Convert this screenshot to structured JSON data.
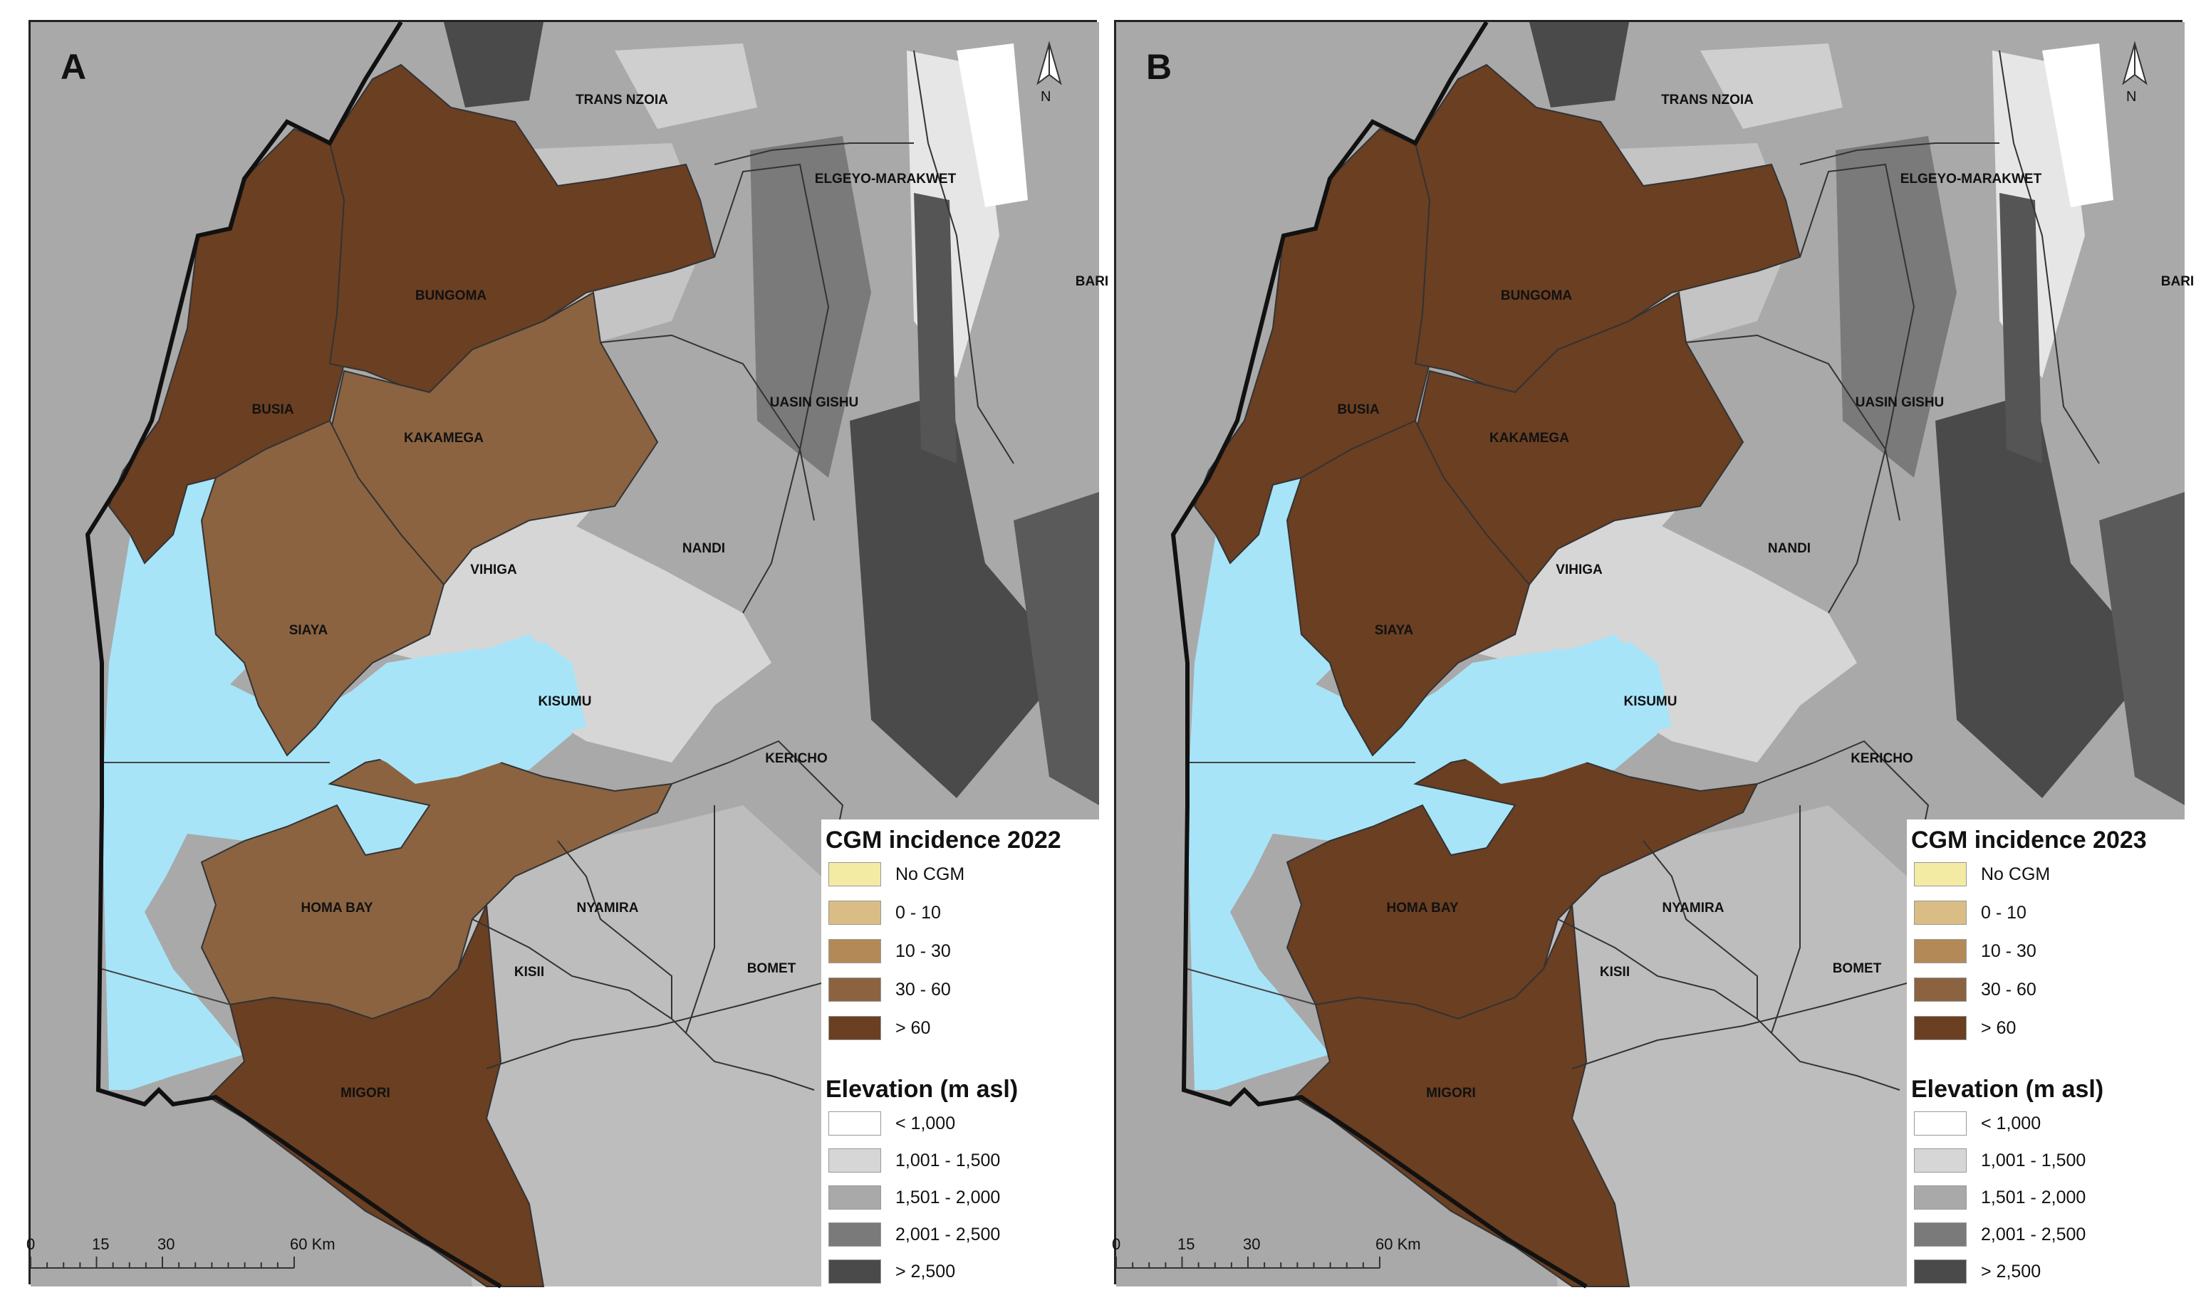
{
  "panels": [
    {
      "letter": "A",
      "legend_title": "CGM incidence 2022",
      "counties": {
        "busia": {
          "name": "BUSIA",
          "class": "> 60"
        },
        "bungoma": {
          "name": "BUNGOMA",
          "class": "> 60"
        },
        "kakamega": {
          "name": "KAKAMEGA",
          "class": "30 - 60"
        },
        "siaya": {
          "name": "SIAYA",
          "class": "30 - 60"
        },
        "homa_bay": {
          "name": "HOMA BAY",
          "class": "30 - 60"
        },
        "migori": {
          "name": "MIGORI",
          "class": "> 60"
        }
      }
    },
    {
      "letter": "B",
      "legend_title": "CGM incidence 2023",
      "counties": {
        "busia": {
          "name": "BUSIA",
          "class": "> 60"
        },
        "bungoma": {
          "name": "BUNGOMA",
          "class": "> 60"
        },
        "kakamega": {
          "name": "KAKAMEGA",
          "class": "> 60"
        },
        "siaya": {
          "name": "SIAYA",
          "class": "> 60"
        },
        "homa_bay": {
          "name": "HOMA BAY",
          "class": "> 60"
        },
        "migori": {
          "name": "MIGORI",
          "class": "> 60"
        }
      }
    }
  ],
  "other_labels": {
    "trans_nzoia": "TRANS NZOIA",
    "elgeyo": "ELGEYO-MARAKWET",
    "baringo": "BARI",
    "uasin_gishu": "UASIN GISHU",
    "vihiga": "VIHIGA",
    "nandi": "NANDI",
    "kisumu": "KISUMU",
    "kericho": "KERICHO",
    "nyamira": "NYAMIRA",
    "kisii": "KISII",
    "bomet": "BOMET"
  },
  "north_arrow": "N",
  "incidence_legend": [
    {
      "label": "No CGM",
      "color": "#f3eba4"
    },
    {
      "label": "0 - 10",
      "color": "#d9bd85"
    },
    {
      "label": "10 - 30",
      "color": "#b38a57"
    },
    {
      "label": "30 - 60",
      "color": "#8b6340"
    },
    {
      "label": "> 60",
      "color": "#6b3f22"
    }
  ],
  "elevation_title": "Elevation (m asl)",
  "elevation_legend": [
    {
      "label": "< 1,000",
      "color": "#ffffff"
    },
    {
      "label": "1,001 - 1,500",
      "color": "#d6d6d6"
    },
    {
      "label": "1,501 - 2,000",
      "color": "#a9a9a9"
    },
    {
      "label": "2,001 - 2,500",
      "color": "#7a7a7a"
    },
    {
      "label": "> 2,500",
      "color": "#4a4a4a"
    }
  ],
  "scale_labels": [
    "0",
    "15",
    "30",
    "60 Km"
  ],
  "lake_color": "#a8e4f8"
}
